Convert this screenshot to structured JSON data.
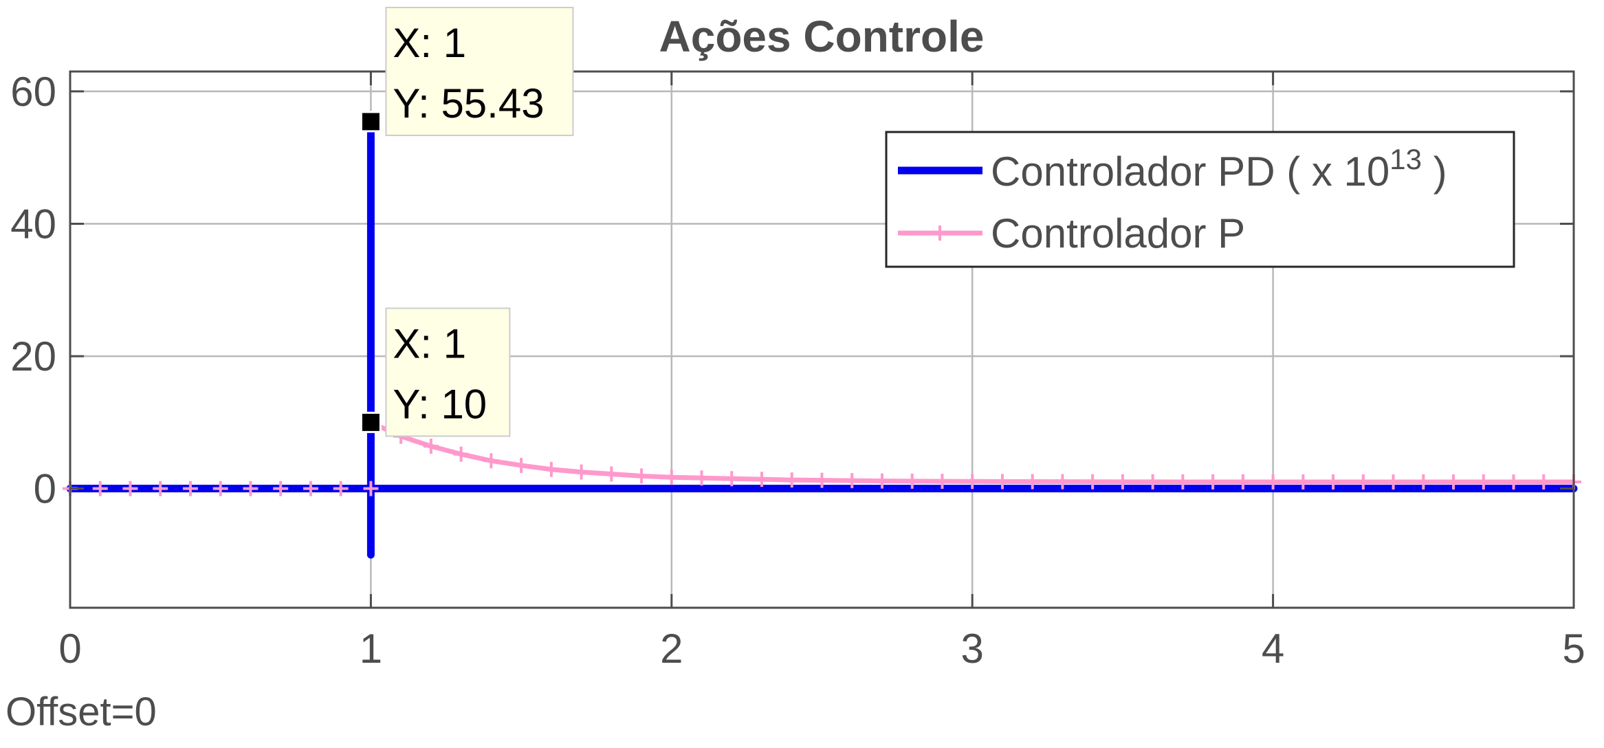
{
  "chart_data": {
    "type": "line",
    "title": "Ações Controle",
    "xlabel": "",
    "ylabel": "",
    "xlim": [
      0,
      5
    ],
    "ylim": [
      -18,
      63
    ],
    "xticks": [
      0,
      1,
      2,
      3,
      4,
      5
    ],
    "yticks": [
      0,
      20,
      40,
      60
    ],
    "xtick_labels": [
      "0",
      "1",
      "2",
      "3",
      "4",
      "5"
    ],
    "ytick_labels": [
      "0",
      "20",
      "40",
      "60"
    ],
    "grid": true,
    "legend_placement": "top-right",
    "series": [
      {
        "name": "Controlador PD ( x 10",
        "name_superscript": "13",
        "name_suffix": " )",
        "color": "#0000ee",
        "marker": "none",
        "x": [
          0,
          1,
          1,
          1,
          1,
          5
        ],
        "y": [
          0,
          0,
          55.43,
          -10,
          0,
          0
        ]
      },
      {
        "name": "Controlador P",
        "color": "#ff99cc",
        "marker": "+",
        "x": [
          0,
          0.1,
          0.2,
          0.3,
          0.4,
          0.5,
          0.6,
          0.7,
          0.8,
          0.9,
          1.0,
          1.0,
          1.1,
          1.2,
          1.3,
          1.4,
          1.5,
          1.6,
          1.7,
          1.8,
          1.9,
          2.0,
          2.1,
          2.2,
          2.3,
          2.4,
          2.5,
          2.6,
          2.7,
          2.8,
          2.9,
          3.0,
          3.1,
          3.2,
          3.3,
          3.4,
          3.5,
          3.6,
          3.7,
          3.8,
          3.9,
          4.0,
          4.1,
          4.2,
          4.3,
          4.4,
          4.5,
          4.6,
          4.7,
          4.8,
          4.9,
          5.0
        ],
        "y": [
          0,
          0,
          0,
          0,
          0,
          0,
          0,
          0,
          0,
          0,
          0,
          10,
          7.9,
          6.4,
          5.2,
          4.2,
          3.5,
          2.9,
          2.5,
          2.2,
          1.9,
          1.7,
          1.6,
          1.5,
          1.4,
          1.3,
          1.25,
          1.2,
          1.15,
          1.12,
          1.1,
          1.08,
          1.06,
          1.05,
          1.04,
          1.03,
          1.02,
          1.02,
          1.01,
          1.01,
          1.01,
          1.0,
          1.0,
          1.0,
          1.0,
          1.0,
          1.0,
          1.0,
          1.0,
          1.0,
          1.0,
          1.0
        ]
      }
    ],
    "datatips": [
      {
        "x": 1,
        "y": 55.43,
        "x_text": "X: 1",
        "y_text": "Y: 55.43"
      },
      {
        "x": 1,
        "y": 10,
        "x_text": "X: 1",
        "y_text": "Y: 10"
      }
    ],
    "annotation": "Offset=0"
  },
  "colors": {
    "axis": "#4d4d4d",
    "grid": "#b8b8b8",
    "tip_background": "#ffffe6",
    "tip_border": "#cccccc"
  }
}
